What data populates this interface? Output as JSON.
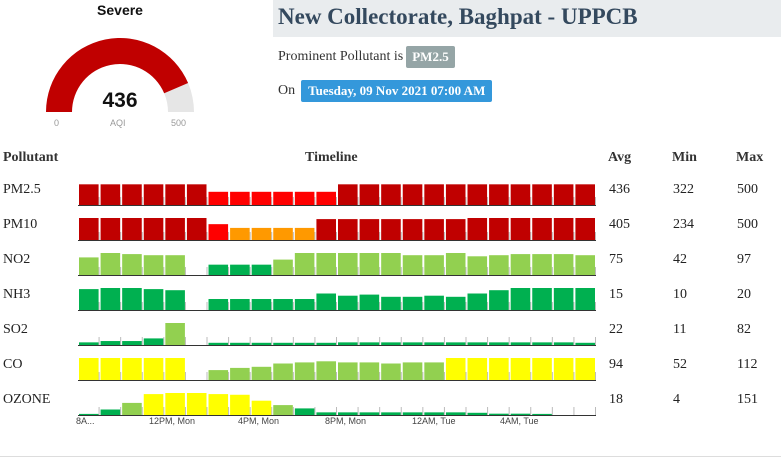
{
  "gauge": {
    "category": "Severe",
    "value": "436",
    "min_label": "0",
    "max_label": "500",
    "unit_label": "AQI",
    "value_num": 436,
    "max_num": 500,
    "fill_color": "#c00000",
    "track_color": "#e6e6e6"
  },
  "station": {
    "title": "New Collectorate, Baghpat - UPPCB",
    "prominent_prefix": "Prominent Pollutant is",
    "prominent_pollutant": "PM2.5",
    "on_label": "On",
    "datetime": "Tuesday, 09 Nov 2021 07:00 AM"
  },
  "table": {
    "headers": {
      "pollutant": "Pollutant",
      "timeline": "Timeline",
      "avg": "Avg",
      "min": "Min",
      "max": "Max"
    },
    "x_labels": [
      "8A...",
      "12PM, Mon",
      "4PM, Mon",
      "8PM, Mon",
      "12AM, Tue",
      "4AM, Tue"
    ],
    "colors": {
      "severe": "#c00000",
      "very_poor": "#ff0000",
      "poor": "#ff9900",
      "moderate": "#ffff00",
      "satisfactory": "#92d050",
      "good": "#00b050"
    },
    "rows": [
      {
        "name": "PM2.5",
        "avg": "436",
        "min": "322",
        "max": "500",
        "values": [
          0.94,
          0.94,
          0.94,
          0.94,
          0.94,
          0.94,
          0.6,
          0.6,
          0.6,
          0.6,
          0.6,
          0.6,
          0.94,
          0.94,
          0.94,
          0.94,
          0.94,
          0.94,
          0.94,
          0.94,
          0.94,
          0.94,
          0.94,
          0.94
        ],
        "colors": [
          "severe",
          "severe",
          "severe",
          "severe",
          "severe",
          "severe",
          "very_poor",
          "very_poor",
          "very_poor",
          "very_poor",
          "very_poor",
          "very_poor",
          "severe",
          "severe",
          "severe",
          "severe",
          "severe",
          "severe",
          "severe",
          "severe",
          "severe",
          "severe",
          "severe",
          "severe"
        ]
      },
      {
        "name": "PM10",
        "avg": "405",
        "min": "234",
        "max": "500",
        "values": [
          1,
          1,
          1,
          1,
          1,
          1,
          0.72,
          0.55,
          0.55,
          0.55,
          0.55,
          0.95,
          0.95,
          0.95,
          0.95,
          0.95,
          0.95,
          0.95,
          1,
          1,
          1,
          1,
          1,
          1
        ],
        "colors": [
          "severe",
          "severe",
          "severe",
          "severe",
          "severe",
          "severe",
          "very_poor",
          "poor",
          "poor",
          "poor",
          "poor",
          "severe",
          "severe",
          "severe",
          "severe",
          "severe",
          "severe",
          "severe",
          "severe",
          "severe",
          "severe",
          "severe",
          "severe",
          "severe"
        ]
      },
      {
        "name": "NO2",
        "avg": "75",
        "min": "42",
        "max": "97",
        "values": [
          0.8,
          1,
          0.95,
          0.9,
          0.9,
          null,
          0.47,
          0.47,
          0.47,
          0.7,
          1,
          1,
          1,
          1,
          1,
          0.9,
          0.9,
          1,
          0.85,
          0.9,
          0.95,
          0.95,
          0.95,
          0.9
        ],
        "colors": [
          "satisfactory",
          "satisfactory",
          "satisfactory",
          "satisfactory",
          "satisfactory",
          null,
          "good",
          "good",
          "good",
          "satisfactory",
          "satisfactory",
          "satisfactory",
          "satisfactory",
          "satisfactory",
          "satisfactory",
          "satisfactory",
          "satisfactory",
          "satisfactory",
          "satisfactory",
          "satisfactory",
          "satisfactory",
          "satisfactory",
          "satisfactory",
          "satisfactory"
        ]
      },
      {
        "name": "NH3",
        "avg": "15",
        "min": "10",
        "max": "20",
        "values": [
          0.95,
          1,
          1,
          0.95,
          0.9,
          null,
          0.5,
          0.5,
          0.5,
          0.5,
          0.5,
          0.75,
          0.65,
          0.7,
          0.6,
          0.6,
          0.65,
          0.6,
          0.75,
          0.9,
          1,
          1,
          1,
          1
        ],
        "colors": [
          "good",
          "good",
          "good",
          "good",
          "good",
          null,
          "good",
          "good",
          "good",
          "good",
          "good",
          "good",
          "good",
          "good",
          "good",
          "good",
          "good",
          "good",
          "good",
          "good",
          "good",
          "good",
          "good",
          "good"
        ]
      },
      {
        "name": "SO2",
        "avg": "22",
        "min": "11",
        "max": "82",
        "values": [
          0.12,
          0.18,
          0.18,
          0.3,
          1,
          null,
          0.1,
          0.1,
          0.1,
          0.1,
          0.1,
          0.1,
          0.12,
          0.12,
          0.12,
          0.12,
          0.12,
          0.12,
          0.12,
          0.12,
          0.12,
          0.12,
          0.12,
          0.1
        ],
        "colors": [
          "good",
          "good",
          "good",
          "good",
          "satisfactory",
          null,
          "good",
          "good",
          "good",
          "good",
          "good",
          "good",
          "good",
          "good",
          "good",
          "good",
          "good",
          "good",
          "good",
          "good",
          "good",
          "good",
          "good",
          "good"
        ]
      },
      {
        "name": "CO",
        "avg": "94",
        "min": "52",
        "max": "112",
        "values": [
          1,
          1,
          1,
          1,
          1,
          null,
          0.45,
          0.55,
          0.6,
          0.75,
          0.8,
          0.85,
          0.8,
          0.8,
          0.75,
          0.8,
          0.8,
          1,
          1,
          1,
          1,
          1,
          1,
          1
        ],
        "colors": [
          "moderate",
          "moderate",
          "moderate",
          "moderate",
          "moderate",
          null,
          "satisfactory",
          "satisfactory",
          "satisfactory",
          "satisfactory",
          "satisfactory",
          "satisfactory",
          "satisfactory",
          "satisfactory",
          "satisfactory",
          "satisfactory",
          "satisfactory",
          "moderate",
          "moderate",
          "moderate",
          "moderate",
          "moderate",
          "moderate",
          "moderate"
        ]
      },
      {
        "name": "OZONE",
        "avg": "18",
        "min": "4",
        "max": "151",
        "values": [
          0.05,
          0.25,
          0.55,
          0.95,
          1,
          1,
          0.95,
          0.92,
          0.65,
          0.45,
          0.3,
          0.12,
          0.12,
          0.12,
          0.12,
          0.12,
          0.12,
          0.12,
          0.1,
          0.06,
          0.06,
          0.05,
          null,
          null
        ],
        "colors": [
          "good",
          "good",
          "satisfactory",
          "moderate",
          "moderate",
          "moderate",
          "moderate",
          "moderate",
          "moderate",
          "satisfactory",
          "good",
          "good",
          "good",
          "good",
          "good",
          "good",
          "good",
          "good",
          "good",
          "good",
          "good",
          "good",
          null,
          null
        ]
      }
    ]
  }
}
